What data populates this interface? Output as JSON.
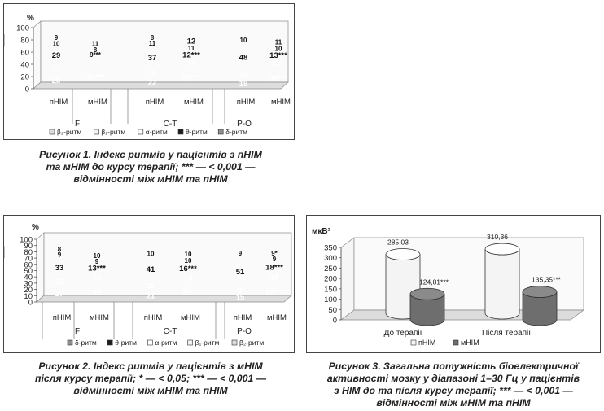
{
  "chart_data": [
    {
      "type": "bar",
      "stacked": true,
      "ylabel": "%",
      "ylim": [
        0,
        100
      ],
      "yticks": [
        0,
        20,
        40,
        60,
        80,
        100
      ],
      "categories": [
        "пНІМ",
        "мНІМ",
        "пНІМ",
        "мНІМ",
        "пНІМ",
        "мНІМ"
      ],
      "groups": [
        "F",
        "C-T",
        "P-O"
      ],
      "legend": [
        "β₂-ритм",
        "β₁-ритм",
        "α-ритм",
        "θ-ритм",
        "δ-ритм"
      ],
      "series": [
        {
          "name": "δ-ритм",
          "values": [
            28,
            40,
            22,
            38,
            18,
            36
          ],
          "labels": [
            "28",
            "40***",
            "22",
            "38***",
            "18",
            "36***"
          ]
        },
        {
          "name": "θ-ритм",
          "values": [
            13,
            12,
            11,
            12,
            10,
            13
          ],
          "labels": [
            "13",
            "12",
            "11",
            "12",
            "10",
            "13"
          ]
        },
        {
          "name": "α-ритм",
          "values": [
            29,
            9,
            37,
            12,
            48,
            13
          ],
          "labels": [
            "29",
            "9***",
            "37",
            "12***",
            "48",
            "13***"
          ]
        },
        {
          "name": "β₁-ритм",
          "values": [
            10,
            8,
            11,
            11,
            10,
            10
          ],
          "labels": [
            "10",
            "8",
            "11",
            "11",
            "10",
            "10"
          ]
        },
        {
          "name": "β₂-ритм",
          "values": [
            9,
            11,
            8,
            12,
            0,
            11
          ],
          "labels": [
            "9",
            "11",
            "8",
            "12",
            "0",
            "11"
          ]
        }
      ]
    },
    {
      "type": "bar",
      "stacked": true,
      "ylabel": "%",
      "ylim": [
        0,
        100
      ],
      "yticks": [
        0,
        10,
        20,
        30,
        40,
        50,
        60,
        70,
        80,
        90,
        100
      ],
      "categories": [
        "пНІМ",
        "мНІМ",
        "пНІМ",
        "мНІМ",
        "пНІМ",
        "мНІМ"
      ],
      "groups": [
        "F",
        "C-T",
        "P-O"
      ],
      "legend": [
        "δ-ритм",
        "θ-ритм",
        "α-ритм",
        "β₁-ритм",
        "β₂-ритм"
      ],
      "series": [
        {
          "name": "δ-ритм",
          "values": [
            27,
            32,
            21,
            32,
            15,
            32
          ],
          "labels": [
            "27",
            "32",
            "21",
            "32*",
            "15",
            "32***"
          ]
        },
        {
          "name": "θ-ритм",
          "values": [
            12,
            16,
            11,
            14,
            8,
            15
          ],
          "labels": [
            "12",
            "16",
            "11",
            "14",
            "8",
            "15"
          ]
        },
        {
          "name": "α-ритм",
          "values": [
            33,
            13,
            41,
            16,
            51,
            18
          ],
          "labels": [
            "33",
            "13***",
            "41",
            "16***",
            "51",
            "18***"
          ]
        },
        {
          "name": "β₁-ритм",
          "values": [
            9,
            9,
            10,
            10,
            9,
            9
          ],
          "labels": [
            "9",
            "9",
            "10",
            "10",
            "9",
            "9"
          ]
        },
        {
          "name": "β₂-ритм",
          "values": [
            8,
            10,
            0,
            10,
            0,
            9
          ],
          "labels": [
            "8",
            "10",
            "0",
            "10",
            "0",
            "9*"
          ]
        }
      ]
    },
    {
      "type": "bar",
      "ylabel": "мкВ²",
      "ylim": [
        0,
        350
      ],
      "yticks": [
        0,
        50,
        100,
        150,
        200,
        250,
        300,
        350
      ],
      "categories": [
        "До терапії",
        "Після терапії"
      ],
      "legend": [
        "пНІМ",
        "мНІМ"
      ],
      "series": [
        {
          "name": "пНІМ",
          "values": [
            285.03,
            310.36
          ],
          "labels": [
            "285,03",
            "310,36"
          ]
        },
        {
          "name": "мНІМ",
          "values": [
            124.81,
            135.35
          ],
          "labels": [
            "124,81***",
            "135,35***"
          ]
        }
      ]
    }
  ],
  "captions": [
    {
      "lines": [
        "Рисунок 1. Індекс ритмів у пацієнтів з пНІМ",
        "та мНІМ до курсу терапії; *** — < 0,001 —",
        "відмінності між мНІМ та пНІМ"
      ]
    },
    {
      "lines": [
        "Рисунок 2. Індекс ритмів у пацієнтів з мНІМ",
        "після курсу терапії; * — < 0,05; *** — < 0,001 —",
        "відмінності між мНІМ та пНІМ"
      ]
    },
    {
      "lines": [
        "Рисунок 3. Загальна потужність біоелектричної",
        "активності мозку у діапазоні 1–30 Гц у пацієнтів",
        "з НІМ до та після курсу терапії; *** — < 0,001 —",
        "відмінності між мНІМ та пНІМ"
      ]
    }
  ],
  "colors": {
    "δ-ритм": "#8f8f8f",
    "θ-ритм": "#1e1e1e",
    "α-ритм": "#ffffff",
    "β₁-ритм": "#f2f2f2",
    "β₂-ритм": "#dcdcdc",
    "пНІМ": "#f4f4f4",
    "мНІМ": "#6e6e6e"
  }
}
